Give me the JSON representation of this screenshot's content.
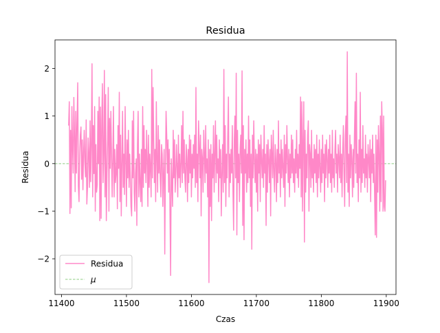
{
  "chart_data": {
    "type": "line",
    "title": "Residua",
    "xlabel": "Czas",
    "ylabel": "Residua",
    "xlim": [
      11390,
      11915
    ],
    "ylim": [
      -2.75,
      2.6
    ],
    "xticks": [
      11400,
      11500,
      11600,
      11700,
      11800,
      11900
    ],
    "xtick_labels": [
      "11400",
      "11500",
      "11600",
      "11700",
      "11800",
      "11900"
    ],
    "yticks": [
      -2,
      -1,
      0,
      1,
      2
    ],
    "ytick_labels": [
      "−2",
      "−1",
      "0",
      "1",
      "2"
    ],
    "grid": false,
    "legend_position": "lower left",
    "series": [
      {
        "name": "Residua",
        "color": "#ff88c8",
        "style": "solid",
        "x_start": 11411,
        "x_step": 1,
        "values": [
          0.8,
          1.3,
          -1.05,
          0.7,
          -0.93,
          1.2,
          0.35,
          -0.2,
          1.39,
          0.6,
          -0.59,
          1.1,
          -0.2,
          0.85,
          1.7,
          -0.47,
          -0.8,
          0.2,
          0.6,
          0.77,
          -0.33,
          0.5,
          -0.55,
          0.21,
          0.7,
          0.0,
          -0.28,
          0.92,
          -0.85,
          -0.51,
          0.54,
          0.22,
          -0.5,
          0.9,
          -0.38,
          0.4,
          2.1,
          -0.7,
          0.8,
          -0.21,
          1.2,
          -1.0,
          0.4,
          -0.6,
          -0.45,
          1.1,
          0.0,
          1.4,
          -1.2,
          1.19,
          -1.15,
          0.9,
          1.68,
          -0.4,
          0.2,
          1.96,
          -0.7,
          1.45,
          -1.2,
          -0.2,
          0.5,
          1.6,
          -1.0,
          0.95,
          -0.1,
          1.1,
          0.2,
          -0.7,
          0.1,
          1.2,
          -0.7,
          0.3,
          -0.4,
          -0.2,
          0.4,
          -0.95,
          0.8,
          -0.1,
          1.5,
          -0.8,
          0.6,
          -1.1,
          0.0,
          1.1,
          -0.5,
          0.2,
          -0.65,
          1.2,
          0.1,
          -0.9,
          0.5,
          -0.3,
          0.7,
          -0.5,
          0.2,
          -0.3,
          -0.9,
          -1.1,
          0.9,
          -0.3,
          1.1,
          -0.6,
          -1.0,
          -0.2,
          0.1,
          -1.3,
          0.4,
          1.1,
          -0.7,
          0.2,
          -0.4,
          -0.8,
          0.3,
          -0.9,
          1.2,
          -0.5,
          0.8,
          -0.2,
          0.3,
          -0.4,
          0.7,
          0.1,
          -0.9,
          0.6,
          -0.5,
          0.2,
          -0.1,
          -0.7,
          1.98,
          -0.3,
          1.6,
          0.5,
          -0.4,
          0.3,
          -0.8,
          1.3,
          0.1,
          -0.6,
          0.8,
          -0.2,
          0.5,
          -0.3,
          -0.7,
          0.4,
          0.2,
          -0.9,
          -0.2,
          0.3,
          -1.9,
          -0.1,
          1.1,
          0.6,
          -0.2,
          0.5,
          -0.6,
          0.3,
          -1.0,
          -2.35,
          0.1,
          -0.4,
          -0.9,
          0.7,
          -0.3,
          0.5,
          -0.6,
          -0.2,
          0.4,
          -0.1,
          -0.7,
          0.6,
          -0.3,
          0.2,
          -0.5,
          0.0,
          0.8,
          -0.4,
          1.1,
          -0.2,
          0.5,
          -0.3,
          -0.6,
          0.4,
          0.1,
          -0.8,
          0.3,
          -0.4,
          0.6,
          -0.2,
          0.5,
          -0.7,
          0.2,
          -0.3,
          0.4,
          -0.1,
          0.6,
          -0.5,
          1.6,
          -0.4,
          0.2,
          -0.8,
          0.9,
          0.4,
          -0.3,
          0.6,
          -1.1,
          0.3,
          0.1,
          -0.6,
          0.7,
          0.2,
          -0.4,
          0.8,
          -0.2,
          0.1,
          -0.7,
          0.5,
          -2.5,
          0.3,
          -0.9,
          0.4,
          -1.2,
          0.2,
          -0.3,
          0.8,
          -0.6,
          0.2,
          0.9,
          -0.4,
          0.6,
          -0.2,
          0.1,
          -0.8,
          0.5,
          -0.3,
          0.3,
          -1.1,
          -0.2,
          0.4,
          -0.6,
          1.98,
          -0.4,
          0.8,
          -0.9,
          0.2,
          -0.3,
          0.6,
          1.4,
          -0.7,
          0.2,
          -0.4,
          0.3,
          -0.2,
          0.8,
          -0.6,
          -1.4,
          0.5,
          1.0,
          -0.3,
          1.9,
          -1.5,
          0.7,
          -0.4,
          0.2,
          -0.8,
          0.3,
          0.6,
          -0.2,
          1.95,
          -1.3,
          0.8,
          -1.6,
          0.3,
          -0.2,
          0.5,
          -0.6,
          0.2,
          -0.4,
          1.0,
          -0.3,
          0.5,
          -0.9,
          0.2,
          -1.8,
          0.6,
          -0.3,
          0.9,
          0.1,
          -0.4,
          0.3,
          -0.6,
          0.2,
          -1.0,
          0.5,
          -0.2,
          0.4,
          -0.8,
          0.6,
          0.1,
          -0.3,
          0.3,
          -0.5,
          0.8,
          -0.2,
          0.2,
          -1.3,
          0.4,
          -0.6,
          0.5,
          0.1,
          -0.4,
          0.3,
          -1.1,
          0.6,
          0.2,
          -0.3,
          0.7,
          -0.2,
          -0.6,
          0.4,
          0.1,
          -0.8,
          0.3,
          -0.4,
          0.9,
          -0.2,
          0.2,
          -0.7,
          0.5,
          -0.3,
          0.3,
          -0.1,
          -0.5,
          0.6,
          -0.9,
          0.4,
          -0.2,
          0.8,
          0.1,
          -0.4,
          0.3,
          -0.7,
          0.2,
          -0.3,
          0.6,
          -0.2,
          0.5,
          -0.4,
          0.1,
          -0.6,
          0.3,
          -0.2,
          0.7,
          -0.3,
          0.2,
          -0.5,
          0.4,
          -0.1,
          1.4,
          -0.7,
          1.3,
          -1.0,
          0.5,
          1.3,
          -1.65,
          0.7,
          -0.6,
          0.2,
          -0.3,
          0.6,
          0.9,
          -1.0,
          0.4,
          0.2,
          -0.5,
          0.7,
          -0.3,
          0.1,
          -0.6,
          0.4,
          -0.2,
          0.3,
          -0.4,
          0.6,
          -0.7,
          0.2,
          -0.3,
          0.5,
          -0.1,
          -0.6,
          0.3,
          -0.4,
          0.6,
          -0.2,
          0.2,
          -0.8,
          0.4,
          -0.3,
          0.5,
          0.1,
          -0.5,
          0.3,
          -0.2,
          0.6,
          -0.4,
          0.2,
          -0.6,
          0.7,
          -0.3,
          0.1,
          -0.5,
          0.3,
          0.7,
          -0.2,
          0.2,
          -0.6,
          0.4,
          0.1,
          -0.3,
          0.6,
          -0.4,
          0.2,
          -0.7,
          0.3,
          0.8,
          -0.2,
          -0.9,
          0.6,
          1.0,
          -0.4,
          2.35,
          -0.6,
          0.2,
          -0.9,
          0.6,
          -0.3,
          0.4,
          0.1,
          -0.7,
          0.3,
          -0.5,
          0.6,
          1.3,
          -0.2,
          1.9,
          -0.4,
          0.2,
          -0.8,
          0.5,
          -0.3,
          1.5,
          -0.6,
          0.3,
          -0.4,
          0.8,
          -0.2,
          0.1,
          -0.5,
          0.6,
          -0.3,
          0.2,
          -0.6,
          0.4,
          0.1,
          -0.3,
          0.5,
          -0.8,
          0.3,
          -0.2,
          0.6,
          -0.4,
          0.2,
          -0.6,
          -1.5,
          0.6,
          -1.55,
          0.5,
          -0.6,
          0.8,
          0.2,
          -1.0,
          1.0,
          -0.8,
          1.3,
          0.7,
          -1.0,
          1.0,
          -0.9,
          -1.0,
          -0.35
        ]
      },
      {
        "name": "$\\mu$",
        "legend_label": "μ",
        "color": "#8dcc82",
        "style": "dashed",
        "constant": 0
      }
    ]
  }
}
